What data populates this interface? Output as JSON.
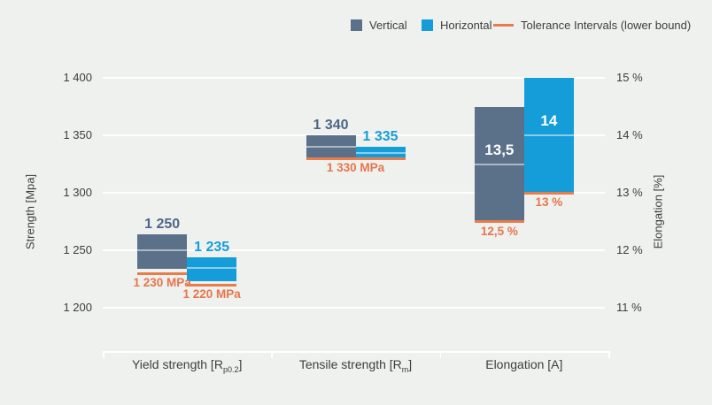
{
  "legend": {
    "items": [
      {
        "label": "Vertical",
        "marker": "square-swatch-icon"
      },
      {
        "label": "Horizontal",
        "marker": "square-swatch-icon"
      },
      {
        "label": "Tolerance Intervals (lower bound)",
        "marker": "line-swatch-icon"
      }
    ]
  },
  "colors": {
    "series": [
      "#5b7189",
      "#149dd8"
    ],
    "series_text": [
      "#4c6787",
      "#149dd8"
    ],
    "tolerance": "#e87c4b",
    "tolerance_text": "#e5764b",
    "background": "#eff1ef",
    "text": "#3e3e3c",
    "gridline": "#ffffff"
  },
  "chart_data": {
    "type": "bar",
    "categories": [
      "Yield strength [Rp0.2]",
      "Tensile strength [Rm]",
      "Elongation [A]"
    ],
    "series": [
      {
        "name": "Vertical",
        "means": [
          1250,
          1340,
          13.5
        ],
        "ranges": [
          [
            1234,
            1264
          ],
          [
            1329,
            1350
          ],
          [
            12.5,
            14.5
          ]
        ],
        "tolerance_lower": [
          1230,
          1330,
          12.5
        ]
      },
      {
        "name": "Horizontal",
        "means": [
          1235,
          1335,
          14
        ],
        "ranges": [
          [
            1223,
            1244
          ],
          [
            1330,
            1340
          ],
          [
            13,
            15
          ]
        ],
        "tolerance_lower": [
          1220,
          1330,
          13
        ]
      }
    ],
    "left_axis": {
      "title": "Strength [Mpa]",
      "ticks": [
        "1 400",
        "1 350",
        "1 300",
        "1 250",
        "1 200"
      ],
      "values": [
        1400,
        1350,
        1300,
        1250,
        1200
      ],
      "range": [
        1200,
        1400
      ]
    },
    "right_axis": {
      "title": "Elongation [%]",
      "ticks": [
        "15 %",
        "14 %",
        "13 %",
        "12 %",
        "11 %"
      ],
      "values": [
        15,
        14,
        13,
        12,
        11
      ],
      "range": [
        11,
        15
      ]
    },
    "grid": true,
    "legend_position": "top-right",
    "groups": [
      {
        "category": {
          "pre": "Yield strength [R",
          "sub": "p0.2",
          "post": "]"
        },
        "axis": "left",
        "series": [
          {
            "name": "Vertical",
            "mean": 1250,
            "low": 1234,
            "high": 1264,
            "label": "1 250",
            "label_pos": "above",
            "tolerance": 1230,
            "tolerance_label": "1 230 MPa"
          },
          {
            "name": "Horizontal",
            "mean": 1235,
            "low": 1223,
            "high": 1244,
            "label": "1 235",
            "label_pos": "above",
            "tolerance": 1220,
            "tolerance_label": "1 220 MPa"
          }
        ]
      },
      {
        "category": {
          "pre": "Tensile strength [R",
          "sub": "m",
          "post": "]"
        },
        "axis": "left",
        "series": [
          {
            "name": "Vertical",
            "mean": 1340,
            "low": 1329,
            "high": 1350,
            "label": "1 340",
            "label_pos": "above",
            "tolerance": 1330,
            "tolerance_label": "1 330 MPa"
          },
          {
            "name": "Horizontal",
            "mean": 1335,
            "low": 1330,
            "high": 1340,
            "label": "1 335",
            "label_pos": "above",
            "tolerance": 1330,
            "tolerance_label": null
          }
        ]
      },
      {
        "category": {
          "pre": "Elongation [A]",
          "sub": "",
          "post": ""
        },
        "axis": "right",
        "series": [
          {
            "name": "Vertical",
            "mean": 13.5,
            "low": 12.5,
            "high": 14.5,
            "label": "13,5",
            "label_pos": "inside",
            "tolerance": 12.5,
            "tolerance_label": "12,5 %"
          },
          {
            "name": "Horizontal",
            "mean": 14,
            "low": 13,
            "high": 15,
            "label": "14",
            "label_pos": "inside",
            "tolerance": 13,
            "tolerance_label": "13 %"
          }
        ]
      }
    ]
  }
}
